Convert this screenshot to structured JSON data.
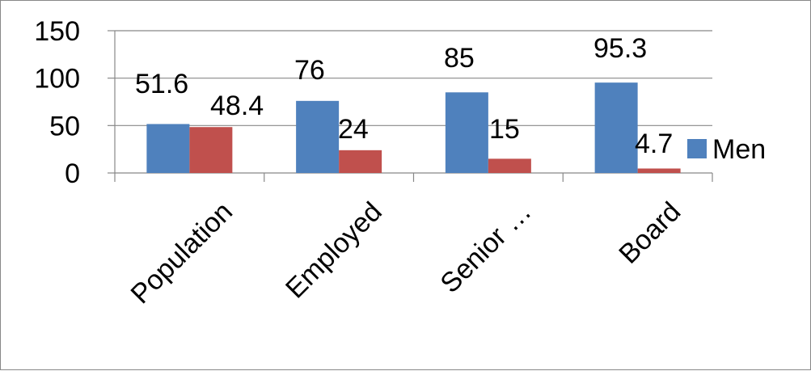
{
  "chart_data": {
    "type": "bar",
    "categories": [
      "Population",
      "Employed",
      "Senior …",
      "Board"
    ],
    "series": [
      {
        "name": "Men",
        "values": [
          51.6,
          76,
          85,
          95.3
        ],
        "color": "#4F81BD"
      },
      {
        "name": "",
        "values": [
          48.4,
          24,
          15,
          4.7
        ],
        "color": "#C0504D"
      }
    ],
    "data_labels": [
      [
        "51.6",
        "76",
        "85",
        "95.3"
      ],
      [
        "48.4",
        "24",
        "15",
        "4.7"
      ]
    ],
    "y_ticks": [
      "0",
      "50",
      "100",
      "150"
    ],
    "y_tick_values": [
      0,
      50,
      100,
      150
    ],
    "ylim": [
      0,
      150
    ],
    "grid": true,
    "legend_position": "right",
    "title": "",
    "xlabel": "",
    "ylabel": ""
  }
}
